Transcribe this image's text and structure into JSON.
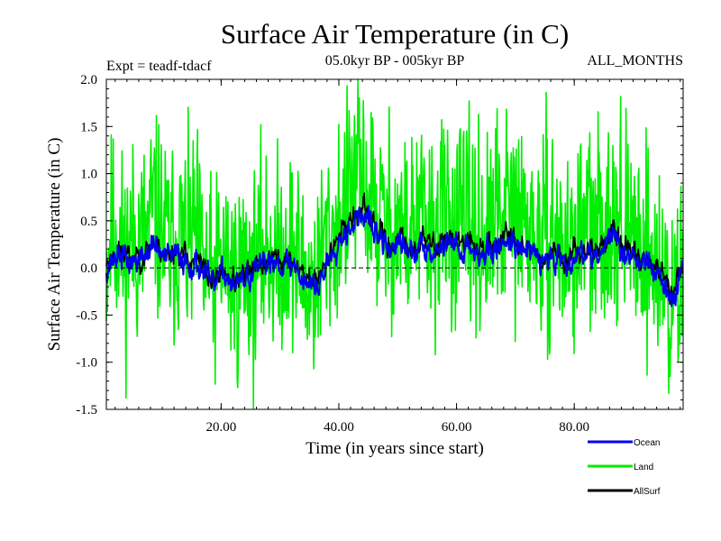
{
  "chart_data": {
    "type": "line",
    "title": "Surface Air Temperature (in C)",
    "subtitle_left": "Expt = teadf-tdacf",
    "subtitle_center": "05.0kyr BP - 005kyr BP",
    "subtitle_right": "ALL_MONTHS",
    "xlabel": "Time (in years since start)",
    "ylabel": "Surface Air Temperature (in C)",
    "xlim": [
      0.5,
      98.5
    ],
    "ylim": [
      -1.5,
      2.0
    ],
    "x_ticks": [
      20,
      40,
      60,
      80
    ],
    "x_tick_labels": [
      "20.00",
      "40.00",
      "60.00",
      "80.00"
    ],
    "y_ticks": [
      -1.5,
      -1.0,
      -0.5,
      0.0,
      0.5,
      1.0,
      1.5,
      2.0
    ],
    "y_tick_labels": [
      "-1.5",
      "-1.0",
      "-0.5",
      "0.0",
      "0.5",
      "1.0",
      "1.5",
      "2.0"
    ],
    "zero_line": 0.0,
    "time_step_years": 0.0833,
    "series": [
      {
        "name": "Land",
        "color": "#00ee00",
        "draw_order": 0,
        "anchors": [
          [
            0.5,
            0.1
          ],
          [
            1.5,
            0.45
          ],
          [
            2.5,
            0.4
          ],
          [
            3.5,
            0.05
          ],
          [
            4.5,
            0.3
          ],
          [
            5.5,
            0.35
          ],
          [
            6.5,
            0.25
          ],
          [
            7.5,
            0.35
          ],
          [
            8.5,
            0.6
          ],
          [
            9.5,
            0.45
          ],
          [
            10.5,
            0.3
          ],
          [
            11.5,
            0.15
          ],
          [
            12.5,
            0.4
          ],
          [
            13.5,
            0.3
          ],
          [
            14.5,
            0.2
          ],
          [
            15.5,
            0.35
          ],
          [
            16.5,
            0.1
          ],
          [
            17.5,
            -0.1
          ],
          [
            18.5,
            -0.2
          ],
          [
            19.5,
            -0.05
          ],
          [
            20.5,
            0.1
          ],
          [
            21.5,
            -0.05
          ],
          [
            22.5,
            -0.15
          ],
          [
            23.5,
            0.0
          ],
          [
            24.5,
            0.05
          ],
          [
            25.5,
            -0.1
          ],
          [
            26.5,
            0.05
          ],
          [
            27.5,
            0.25
          ],
          [
            28.5,
            0.2
          ],
          [
            29.5,
            0.05
          ],
          [
            30.5,
            0.2
          ],
          [
            31.5,
            0.25
          ],
          [
            32.5,
            0.1
          ],
          [
            33.5,
            0.0
          ],
          [
            34.5,
            -0.1
          ],
          [
            35.5,
            -0.2
          ],
          [
            36.5,
            -0.05
          ],
          [
            37.5,
            0.2
          ],
          [
            38.5,
            0.35
          ],
          [
            39.5,
            0.45
          ],
          [
            40.5,
            0.6
          ],
          [
            41.5,
            0.7
          ],
          [
            42.5,
            0.85
          ],
          [
            43.5,
            0.95
          ],
          [
            44.5,
            0.85
          ],
          [
            45.5,
            0.7
          ],
          [
            46.5,
            0.55
          ],
          [
            47.5,
            0.45
          ],
          [
            48.5,
            0.4
          ],
          [
            49.5,
            0.5
          ],
          [
            50.5,
            0.45
          ],
          [
            51.5,
            0.35
          ],
          [
            52.5,
            0.4
          ],
          [
            53.5,
            0.5
          ],
          [
            54.5,
            0.45
          ],
          [
            55.5,
            0.35
          ],
          [
            56.5,
            0.4
          ],
          [
            57.5,
            0.5
          ],
          [
            58.5,
            0.55
          ],
          [
            59.5,
            0.45
          ],
          [
            60.5,
            0.4
          ],
          [
            61.5,
            0.35
          ],
          [
            62.5,
            0.45
          ],
          [
            63.5,
            0.4
          ],
          [
            64.5,
            0.3
          ],
          [
            65.5,
            0.35
          ],
          [
            66.5,
            0.45
          ],
          [
            67.5,
            0.55
          ],
          [
            68.5,
            0.6
          ],
          [
            69.5,
            0.55
          ],
          [
            70.5,
            0.5
          ],
          [
            71.5,
            0.45
          ],
          [
            72.5,
            0.4
          ],
          [
            73.5,
            0.3
          ],
          [
            74.5,
            0.2
          ],
          [
            75.5,
            0.3
          ],
          [
            76.5,
            0.35
          ],
          [
            77.5,
            0.25
          ],
          [
            78.5,
            0.15
          ],
          [
            79.5,
            0.2
          ],
          [
            80.5,
            0.35
          ],
          [
            81.5,
            0.45
          ],
          [
            82.5,
            0.4
          ],
          [
            83.5,
            0.3
          ],
          [
            84.5,
            0.35
          ],
          [
            85.5,
            0.55
          ],
          [
            86.5,
            0.7
          ],
          [
            87.5,
            0.6
          ],
          [
            88.5,
            0.4
          ],
          [
            89.5,
            0.25
          ],
          [
            90.5,
            0.3
          ],
          [
            91.5,
            0.35
          ],
          [
            92.5,
            0.2
          ],
          [
            93.5,
            0.05
          ],
          [
            94.5,
            -0.05
          ],
          [
            95.5,
            -0.2
          ],
          [
            96.5,
            -0.45
          ],
          [
            97.5,
            -0.3
          ],
          [
            98.5,
            0.05
          ]
        ]
      },
      {
        "name": "AllSurf",
        "color": "#000000",
        "draw_order": 1,
        "anchors": [
          [
            0.5,
            0.05
          ],
          [
            2.5,
            0.18
          ],
          [
            4.5,
            0.1
          ],
          [
            6.5,
            0.12
          ],
          [
            8.5,
            0.28
          ],
          [
            10.5,
            0.15
          ],
          [
            12.5,
            0.18
          ],
          [
            14.5,
            0.1
          ],
          [
            16.5,
            0.05
          ],
          [
            18.5,
            -0.15
          ],
          [
            20.5,
            -0.02
          ],
          [
            22.5,
            -0.15
          ],
          [
            24.5,
            -0.05
          ],
          [
            26.5,
            0.02
          ],
          [
            28.5,
            0.12
          ],
          [
            30.5,
            0.08
          ],
          [
            32.5,
            0.05
          ],
          [
            34.5,
            -0.1
          ],
          [
            36.5,
            -0.15
          ],
          [
            38.5,
            0.2
          ],
          [
            40.5,
            0.4
          ],
          [
            42.5,
            0.55
          ],
          [
            44.5,
            0.6
          ],
          [
            46.5,
            0.4
          ],
          [
            48.5,
            0.25
          ],
          [
            50.5,
            0.3
          ],
          [
            52.5,
            0.2
          ],
          [
            54.5,
            0.3
          ],
          [
            56.5,
            0.22
          ],
          [
            58.5,
            0.35
          ],
          [
            60.5,
            0.25
          ],
          [
            62.5,
            0.28
          ],
          [
            64.5,
            0.18
          ],
          [
            66.5,
            0.25
          ],
          [
            68.5,
            0.35
          ],
          [
            70.5,
            0.3
          ],
          [
            72.5,
            0.22
          ],
          [
            74.5,
            0.1
          ],
          [
            76.5,
            0.18
          ],
          [
            78.5,
            0.08
          ],
          [
            80.5,
            0.18
          ],
          [
            82.5,
            0.22
          ],
          [
            84.5,
            0.2
          ],
          [
            86.5,
            0.4
          ],
          [
            88.5,
            0.22
          ],
          [
            90.5,
            0.12
          ],
          [
            92.5,
            0.1
          ],
          [
            94.5,
            -0.05
          ],
          [
            96.5,
            -0.3
          ],
          [
            98.5,
            0.0
          ]
        ]
      },
      {
        "name": "Ocean",
        "color": "#0000ee",
        "draw_order": 2,
        "anchors": [
          [
            0.5,
            0.0
          ],
          [
            2.5,
            0.15
          ],
          [
            4.5,
            0.05
          ],
          [
            6.5,
            0.1
          ],
          [
            8.5,
            0.25
          ],
          [
            10.5,
            0.1
          ],
          [
            12.5,
            0.15
          ],
          [
            14.5,
            0.05
          ],
          [
            16.5,
            0.02
          ],
          [
            18.5,
            -0.2
          ],
          [
            20.5,
            -0.05
          ],
          [
            22.5,
            -0.2
          ],
          [
            24.5,
            -0.1
          ],
          [
            26.5,
            -0.02
          ],
          [
            28.5,
            0.1
          ],
          [
            30.5,
            0.05
          ],
          [
            32.5,
            0.02
          ],
          [
            34.5,
            -0.15
          ],
          [
            36.5,
            -0.2
          ],
          [
            38.5,
            0.15
          ],
          [
            40.5,
            0.35
          ],
          [
            42.5,
            0.5
          ],
          [
            44.5,
            0.55
          ],
          [
            46.5,
            0.35
          ],
          [
            48.5,
            0.2
          ],
          [
            50.5,
            0.25
          ],
          [
            52.5,
            0.15
          ],
          [
            54.5,
            0.25
          ],
          [
            56.5,
            0.18
          ],
          [
            58.5,
            0.3
          ],
          [
            60.5,
            0.2
          ],
          [
            62.5,
            0.22
          ],
          [
            64.5,
            0.12
          ],
          [
            66.5,
            0.2
          ],
          [
            68.5,
            0.3
          ],
          [
            70.5,
            0.25
          ],
          [
            72.5,
            0.18
          ],
          [
            74.5,
            0.05
          ],
          [
            76.5,
            0.15
          ],
          [
            78.5,
            0.05
          ],
          [
            80.5,
            0.15
          ],
          [
            82.5,
            0.18
          ],
          [
            84.5,
            0.15
          ],
          [
            86.5,
            0.35
          ],
          [
            88.5,
            0.18
          ],
          [
            90.5,
            0.08
          ],
          [
            92.5,
            0.05
          ],
          [
            94.5,
            -0.1
          ],
          [
            96.5,
            -0.35
          ],
          [
            98.5,
            -0.05
          ]
        ]
      }
    ],
    "legend": {
      "placement": "bottom-right",
      "entries": [
        {
          "label": "Ocean",
          "color": "#0000ee"
        },
        {
          "label": "Land",
          "color": "#00ee00"
        },
        {
          "label": "AllSurf",
          "color": "#000000"
        }
      ]
    }
  }
}
